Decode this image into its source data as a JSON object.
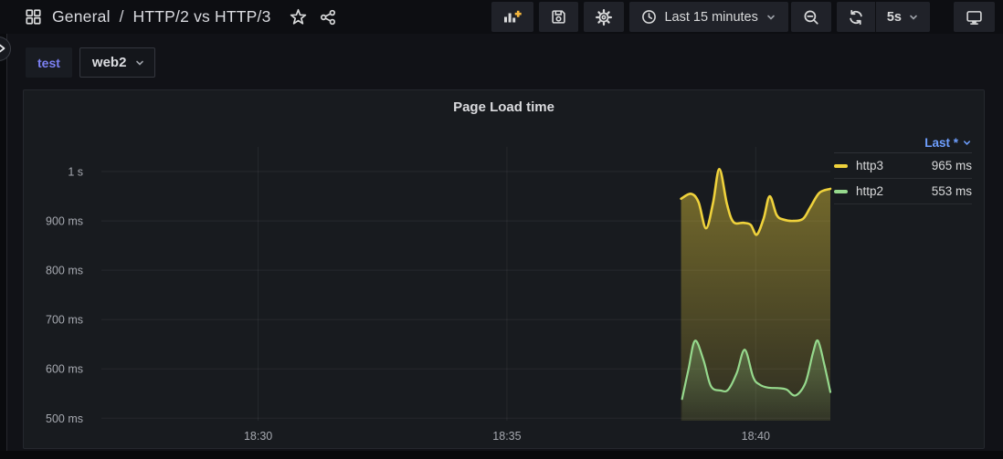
{
  "topnav": {
    "breadcrumb": {
      "section": "General",
      "divider": "/",
      "page": "HTTP/2 vs HTTP/3"
    },
    "time_picker_label": "Last 15 minutes",
    "refresh_interval": "5s"
  },
  "variables": {
    "name": "test",
    "value": "web2"
  },
  "panel": {
    "title": "Page Load time",
    "legend_header": "Last *",
    "rows": [
      {
        "name": "http3",
        "value": "965 ms"
      },
      {
        "name": "http2",
        "value": "553 ms"
      }
    ]
  },
  "colors": {
    "yellow": "#EFD23C",
    "green": "#96D98D",
    "link_blue": "#6E9FFF",
    "variable_blue": "#7B80F2",
    "plus_orange": "#F5B73D",
    "panel_bg": "#181B1F",
    "page_bg": "#111217"
  },
  "chart_data": {
    "type": "area",
    "title": "Page Load time",
    "legend_position": "right",
    "grid": true,
    "x_axis": {
      "unit": "time_of_day",
      "window_label": "Last 15 minutes",
      "range_minutes_since_1800": [
        26.85,
        41.5
      ],
      "ticks": [
        {
          "m": 30,
          "label": "18:30"
        },
        {
          "m": 35,
          "label": "18:35"
        },
        {
          "m": 40,
          "label": "18:40"
        }
      ]
    },
    "y_axis": {
      "unit": "ms",
      "range_ms": [
        495,
        1050
      ],
      "ticks": [
        {
          "v": 1000,
          "label": "1 s"
        },
        {
          "v": 900,
          "label": "900 ms"
        },
        {
          "v": 800,
          "label": "800 ms"
        },
        {
          "v": 700,
          "label": "700 ms"
        },
        {
          "v": 600,
          "label": "600 ms"
        },
        {
          "v": 500,
          "label": "500 ms"
        }
      ]
    },
    "series": [
      {
        "name": "http3",
        "color": "#EFD23C",
        "fill_opacity_top": 0.45,
        "fill_opacity_bottom": 0.1,
        "last_label": "965 ms",
        "points_min_ms": [
          [
            38.5,
            945
          ],
          [
            38.7,
            955
          ],
          [
            38.85,
            938
          ],
          [
            39.0,
            885
          ],
          [
            39.14,
            935
          ],
          [
            39.27,
            1005
          ],
          [
            39.42,
            935
          ],
          [
            39.55,
            898
          ],
          [
            39.75,
            896
          ],
          [
            39.9,
            892
          ],
          [
            40.02,
            872
          ],
          [
            40.16,
            905
          ],
          [
            40.28,
            950
          ],
          [
            40.42,
            912
          ],
          [
            40.55,
            903
          ],
          [
            40.75,
            900
          ],
          [
            40.95,
            904
          ],
          [
            41.1,
            928
          ],
          [
            41.28,
            957
          ],
          [
            41.5,
            965
          ]
        ]
      },
      {
        "name": "http2",
        "color": "#96D98D",
        "fill_opacity_top": 0.3,
        "fill_opacity_bottom": 0.04,
        "last_label": "553 ms",
        "points_min_ms": [
          [
            38.52,
            539
          ],
          [
            38.65,
            600
          ],
          [
            38.78,
            657
          ],
          [
            38.95,
            618
          ],
          [
            39.1,
            565
          ],
          [
            39.3,
            556
          ],
          [
            39.45,
            558
          ],
          [
            39.62,
            592
          ],
          [
            39.78,
            639
          ],
          [
            39.95,
            583
          ],
          [
            40.08,
            568
          ],
          [
            40.25,
            562
          ],
          [
            40.45,
            561
          ],
          [
            40.62,
            558
          ],
          [
            40.8,
            546
          ],
          [
            41.0,
            572
          ],
          [
            41.15,
            632
          ],
          [
            41.25,
            657
          ],
          [
            41.38,
            608
          ],
          [
            41.5,
            553
          ]
        ]
      }
    ]
  }
}
